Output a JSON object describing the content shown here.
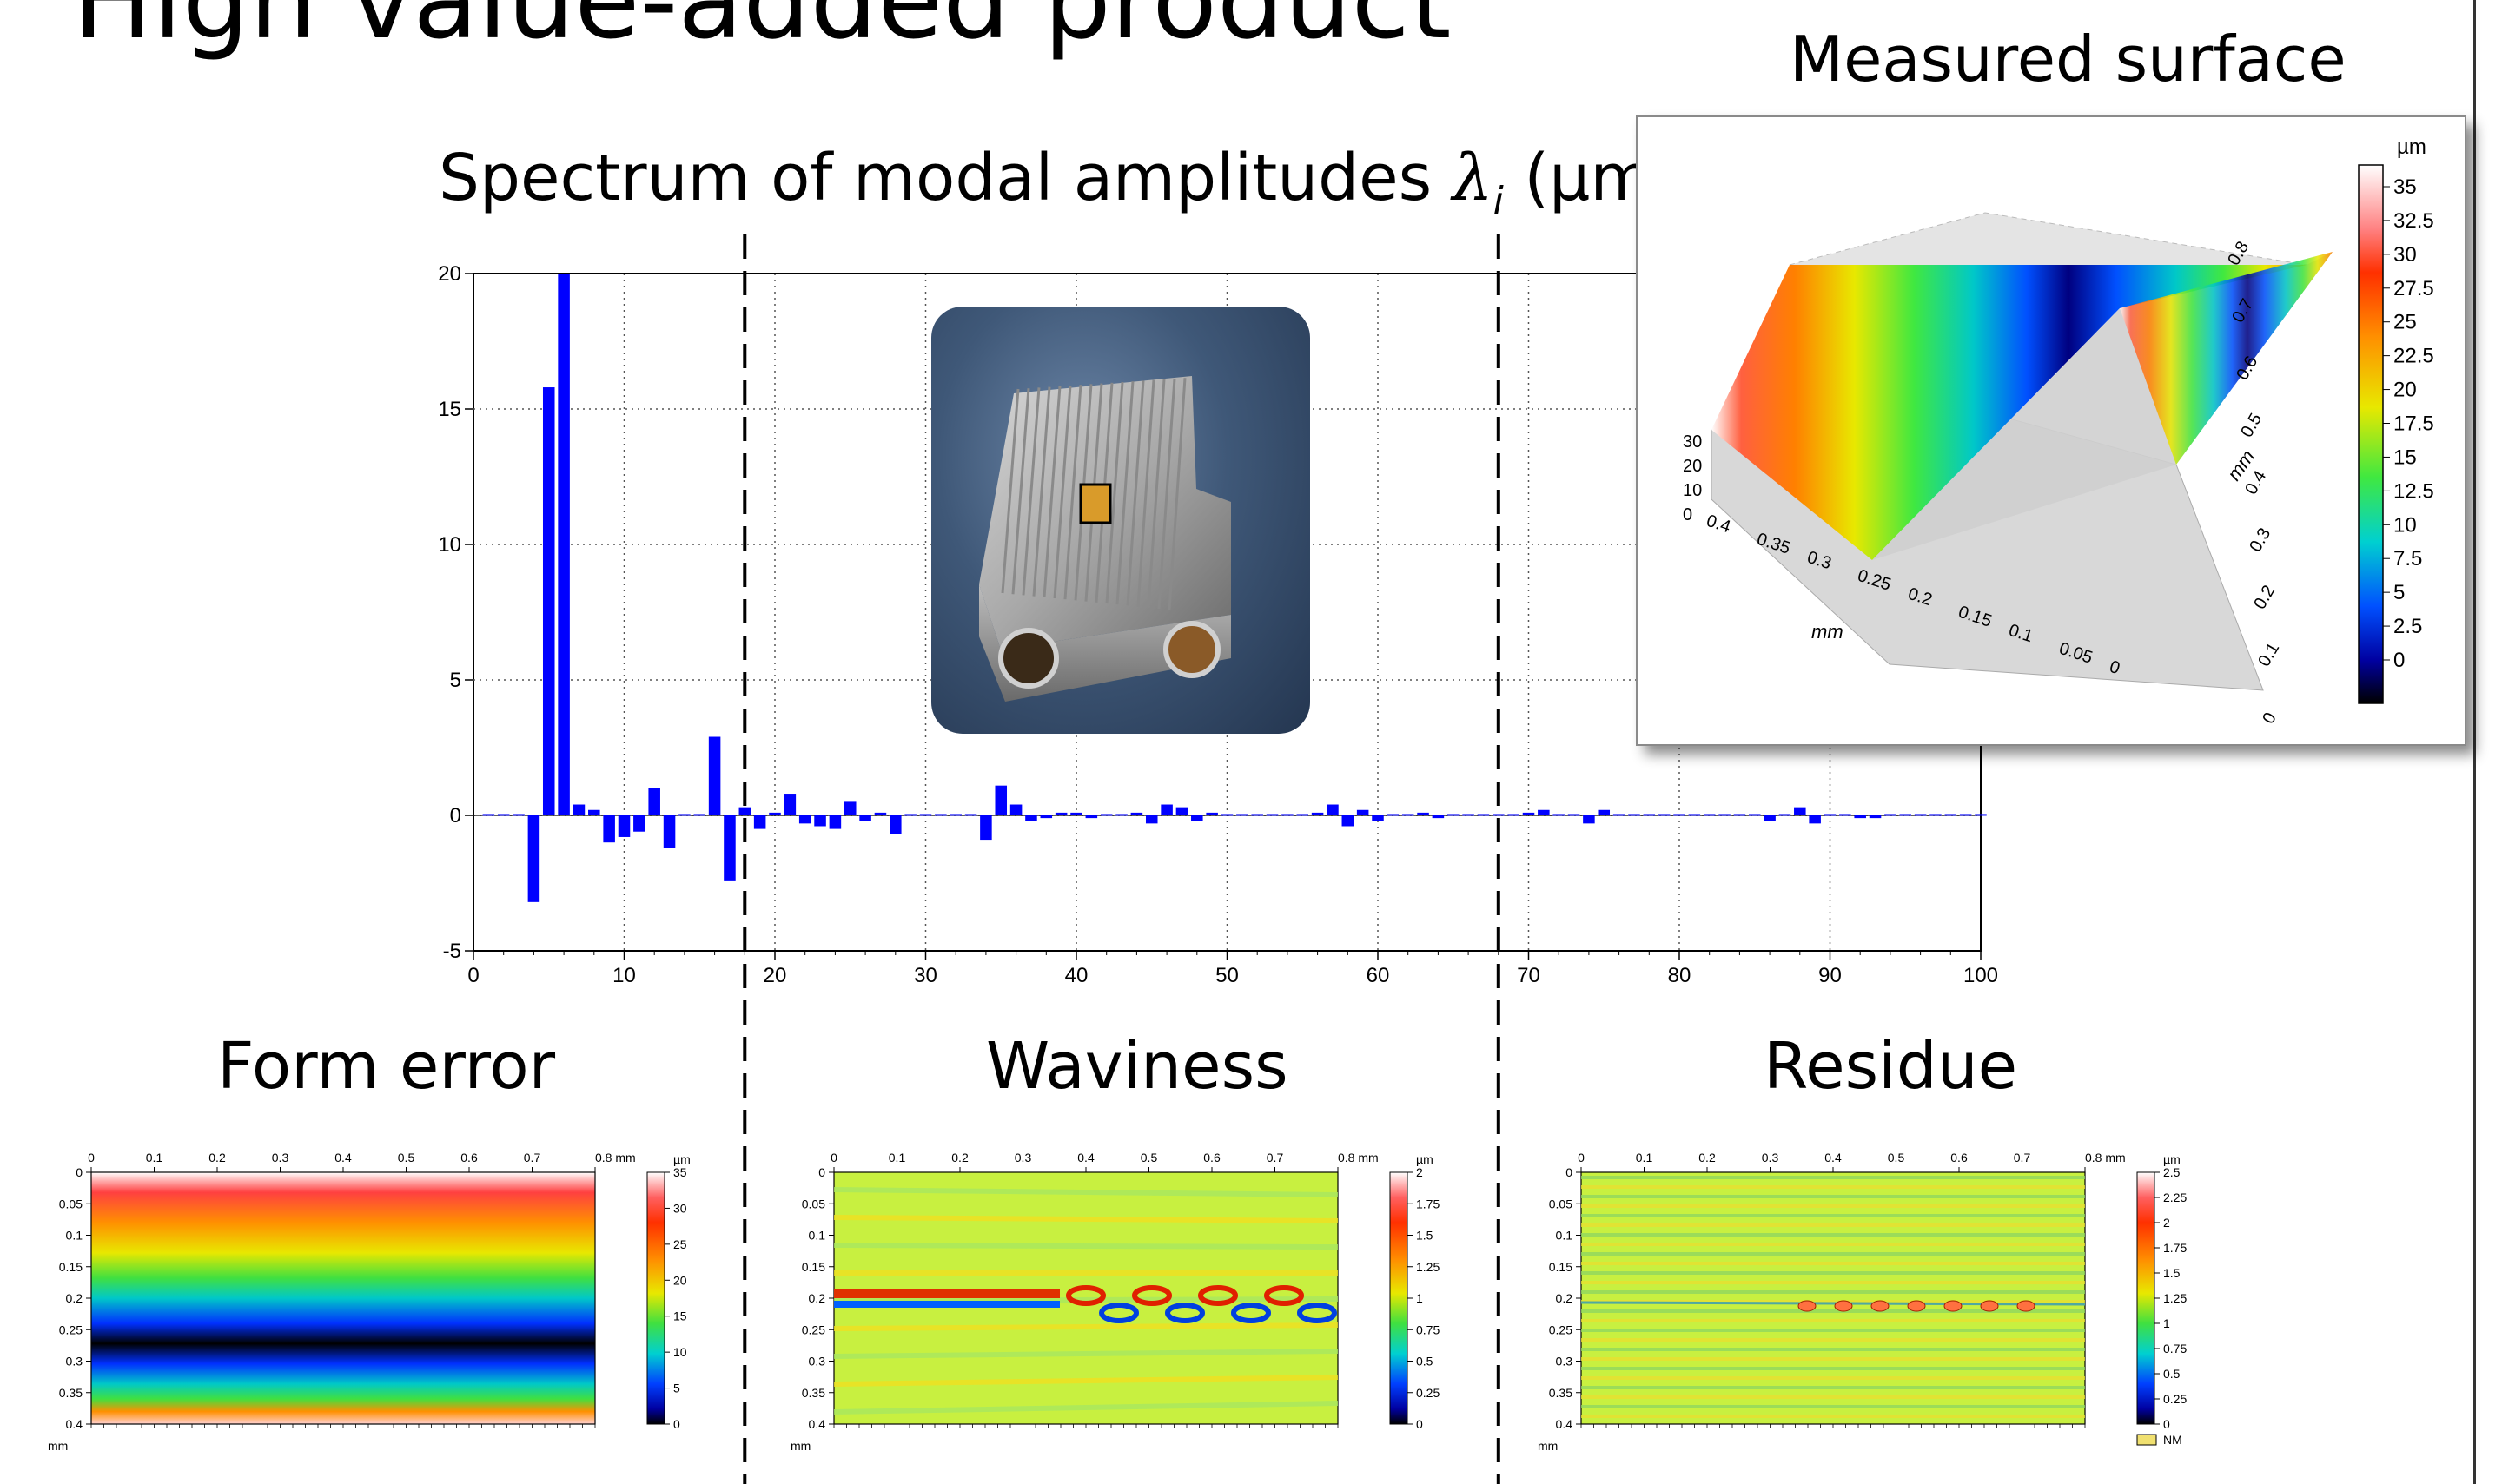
{
  "slide": {
    "title": "High value-added product"
  },
  "spectrum": {
    "title_prefix": "Spectrum of modal amplitudes ",
    "title_symbol": "λ",
    "title_subscript": "i",
    "title_suffix": " (µm)"
  },
  "sections": {
    "form_error": "Form error",
    "waviness": "Waviness",
    "residue": "Residue"
  },
  "measured": {
    "title": "Measured surface",
    "unit": "µm",
    "scale_ticks": [
      "35",
      "32.5",
      "30",
      "27.5",
      "25",
      "22.5",
      "20",
      "17.5",
      "15",
      "12.5",
      "10",
      "7.5",
      "5",
      "2.5",
      "0"
    ],
    "z_ticks": [
      "30",
      "20",
      "10",
      "0"
    ],
    "x_ticks": [
      "0.4",
      "0.35",
      "0.3",
      "0.25",
      "0.2",
      "0.15",
      "0.1",
      "0.05",
      "0"
    ],
    "y_ticks": [
      "0",
      "0.1",
      "0.2",
      "0.3",
      "0.4",
      "0.5",
      "0.6",
      "0.7",
      "0.8"
    ],
    "x_unit": "mm",
    "y_unit": "mm"
  },
  "maps": {
    "x_ticks": [
      "0",
      "0.1",
      "0.2",
      "0.3",
      "0.4",
      "0.5",
      "0.6",
      "0.7",
      "0.8 mm"
    ],
    "y_ticks": [
      "0",
      "0.05",
      "0.1",
      "0.15",
      "0.2",
      "0.25",
      "0.3",
      "0.35",
      "0.4"
    ],
    "y_unit": "mm",
    "form_scale_unit": "µm",
    "form_scale": [
      "35",
      "30",
      "25",
      "20",
      "15",
      "10",
      "5",
      "0"
    ],
    "waviness_scale_unit": "µm",
    "waviness_scale": [
      "2",
      "1.75",
      "1.5",
      "1.25",
      "1",
      "0.75",
      "0.5",
      "0.25",
      "0"
    ],
    "residue_scale_unit": "µm",
    "residue_scale": [
      "2.5",
      "2.25",
      "2",
      "1.75",
      "1.5",
      "1.25",
      "1",
      "0.75",
      "0.5",
      "0.25",
      "0"
    ],
    "residue_legend": "NM"
  },
  "colors": {
    "bar": "#0000ff",
    "dashed": "#000000"
  },
  "chart_data": {
    "type": "bar",
    "title": "Spectrum of modal amplitudes λi (µm)",
    "xlim": [
      0,
      100
    ],
    "ylim": [
      -5,
      20
    ],
    "xticks": [
      0,
      10,
      20,
      30,
      40,
      50,
      60,
      70,
      80,
      90,
      100
    ],
    "yticks": [
      -5,
      0,
      5,
      10,
      15,
      20
    ],
    "grid": true,
    "dividers_x": [
      18,
      68
    ],
    "x": [
      1,
      2,
      3,
      4,
      5,
      6,
      7,
      8,
      9,
      10,
      11,
      12,
      13,
      14,
      15,
      16,
      17,
      18,
      19,
      20,
      21,
      22,
      23,
      24,
      25,
      26,
      27,
      28,
      29,
      30,
      31,
      32,
      33,
      34,
      35,
      36,
      37,
      38,
      39,
      40,
      41,
      42,
      43,
      44,
      45,
      46,
      47,
      48,
      49,
      50,
      51,
      52,
      53,
      54,
      55,
      56,
      57,
      58,
      59,
      60,
      61,
      62,
      63,
      64,
      65,
      66,
      67,
      68,
      69,
      70,
      71,
      72,
      73,
      74,
      75,
      76,
      77,
      78,
      79,
      80,
      81,
      82,
      83,
      84,
      85,
      86,
      87,
      88,
      89,
      90,
      91,
      92,
      93,
      94,
      95,
      96,
      97,
      98,
      99,
      100
    ],
    "values": [
      0.05,
      0.05,
      0.05,
      -3.2,
      15.8,
      20.0,
      0.4,
      0.2,
      -1.0,
      -0.8,
      -0.6,
      1.0,
      -1.2,
      0.05,
      0.05,
      2.9,
      -2.4,
      0.3,
      -0.5,
      0.1,
      0.8,
      -0.3,
      -0.4,
      -0.5,
      0.5,
      -0.2,
      0.1,
      -0.7,
      0.05,
      0.05,
      0.05,
      0.05,
      0.05,
      -0.9,
      1.1,
      0.4,
      -0.2,
      -0.1,
      0.1,
      0.1,
      -0.1,
      0.05,
      0.05,
      0.1,
      -0.3,
      0.4,
      0.3,
      -0.2,
      0.1,
      0.05,
      0.05,
      0.05,
      0.05,
      0.05,
      0.05,
      0.1,
      0.4,
      -0.4,
      0.2,
      -0.2,
      0.05,
      0.05,
      0.1,
      -0.1,
      0.05,
      0.05,
      0.05,
      0.05,
      0.05,
      0.1,
      0.2,
      0.05,
      0.05,
      -0.3,
      0.2,
      0.05,
      0.05,
      0.05,
      0.05,
      0.05,
      0.05,
      0.05,
      0.05,
      0.05,
      0.05,
      -0.2,
      0.05,
      0.3,
      -0.3,
      0.05,
      0.05,
      -0.1,
      -0.1,
      0.05,
      0.05,
      0.05,
      0.05,
      0.05,
      0.05,
      0.05
    ]
  }
}
